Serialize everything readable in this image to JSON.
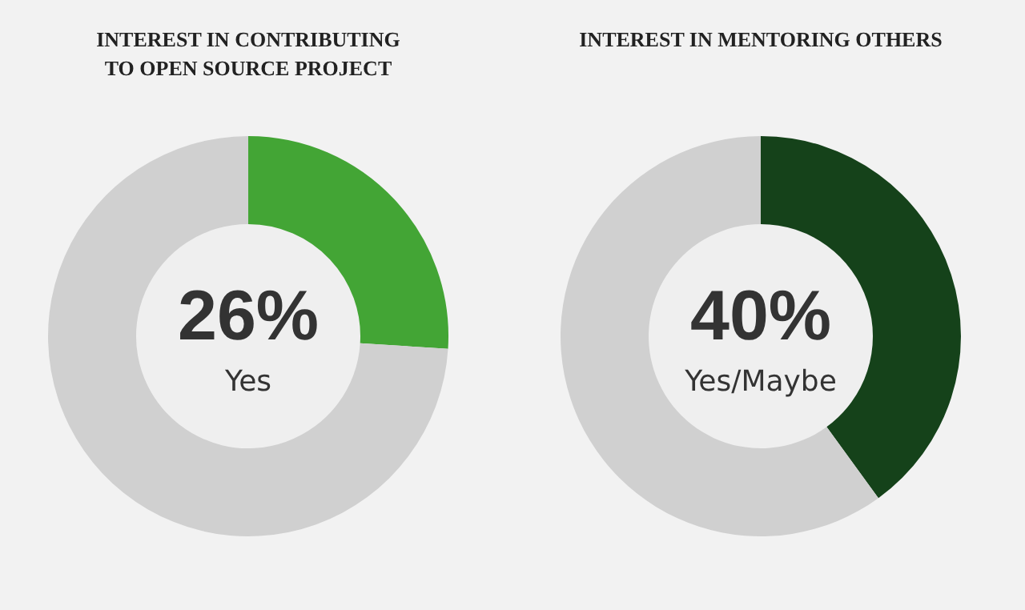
{
  "chart_data": [
    {
      "type": "donut",
      "title": "INTEREST IN CONTRIBUTING\nTO OPEN SOURCE PROJECT",
      "categories": [
        "Yes",
        null
      ],
      "values": [
        26,
        74
      ],
      "colors": [
        "#43a535",
        "#d0d0d0"
      ],
      "value_labels": [
        "26%",
        null
      ]
    },
    {
      "type": "donut",
      "title": "INTEREST IN MENTORING OTHERS",
      "categories": [
        "Yes/Maybe",
        null
      ],
      "values": [
        40,
        60
      ],
      "colors": [
        "#15421a",
        "#d0d0d0"
      ],
      "value_labels": [
        "40%",
        null
      ]
    }
  ]
}
